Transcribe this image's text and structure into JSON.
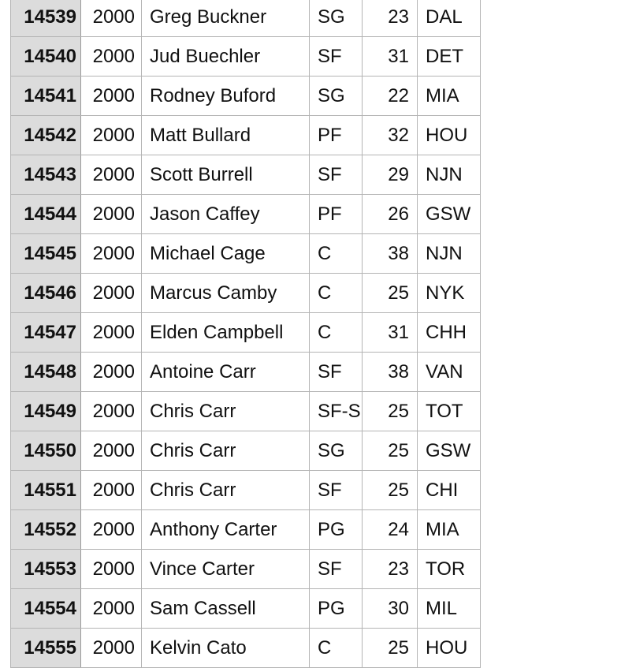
{
  "table": {
    "rows": [
      {
        "id": "14539",
        "year": "2000",
        "player": "Greg Buckner",
        "pos": "SG",
        "age": "23",
        "team": "DAL"
      },
      {
        "id": "14540",
        "year": "2000",
        "player": "Jud Buechler",
        "pos": "SF",
        "age": "31",
        "team": "DET"
      },
      {
        "id": "14541",
        "year": "2000",
        "player": "Rodney Buford",
        "pos": "SG",
        "age": "22",
        "team": "MIA"
      },
      {
        "id": "14542",
        "year": "2000",
        "player": "Matt Bullard",
        "pos": "PF",
        "age": "32",
        "team": "HOU"
      },
      {
        "id": "14543",
        "year": "2000",
        "player": "Scott Burrell",
        "pos": "SF",
        "age": "29",
        "team": "NJN"
      },
      {
        "id": "14544",
        "year": "2000",
        "player": "Jason Caffey",
        "pos": "PF",
        "age": "26",
        "team": "GSW"
      },
      {
        "id": "14545",
        "year": "2000",
        "player": "Michael Cage",
        "pos": "C",
        "age": "38",
        "team": "NJN"
      },
      {
        "id": "14546",
        "year": "2000",
        "player": "Marcus Camby",
        "pos": "C",
        "age": "25",
        "team": "NYK"
      },
      {
        "id": "14547",
        "year": "2000",
        "player": "Elden Campbell",
        "pos": "C",
        "age": "31",
        "team": "CHH"
      },
      {
        "id": "14548",
        "year": "2000",
        "player": "Antoine Carr",
        "pos": "SF",
        "age": "38",
        "team": "VAN"
      },
      {
        "id": "14549",
        "year": "2000",
        "player": "Chris Carr",
        "pos": "SF-S",
        "age": "25",
        "team": "TOT"
      },
      {
        "id": "14550",
        "year": "2000",
        "player": "Chris Carr",
        "pos": "SG",
        "age": "25",
        "team": "GSW"
      },
      {
        "id": "14551",
        "year": "2000",
        "player": "Chris Carr",
        "pos": "SF",
        "age": "25",
        "team": "CHI"
      },
      {
        "id": "14552",
        "year": "2000",
        "player": "Anthony Carter",
        "pos": "PG",
        "age": "24",
        "team": "MIA"
      },
      {
        "id": "14553",
        "year": "2000",
        "player": "Vince Carter",
        "pos": "SF",
        "age": "23",
        "team": "TOR"
      },
      {
        "id": "14554",
        "year": "2000",
        "player": "Sam Cassell",
        "pos": "PG",
        "age": "30",
        "team": "MIL"
      },
      {
        "id": "14555",
        "year": "2000",
        "player": "Kelvin Cato",
        "pos": "C",
        "age": "25",
        "team": "HOU"
      }
    ]
  },
  "colors": {
    "row_header_bg": "#dcdcdc",
    "grid_line": "#b4b4b4",
    "text": "#111111"
  }
}
